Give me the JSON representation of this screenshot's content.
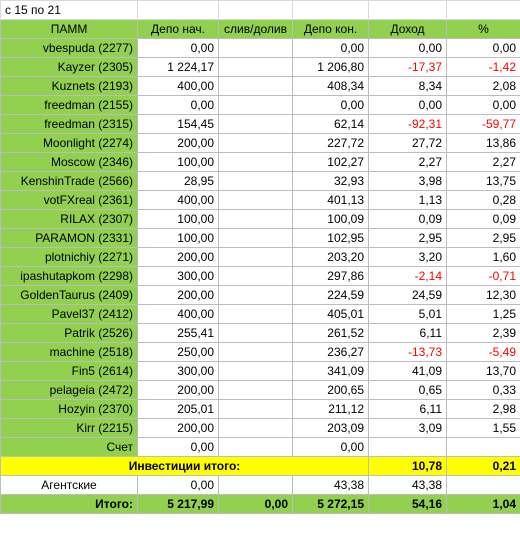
{
  "title": "с 15 по 21",
  "headers": [
    "ПАММ",
    "Депо нач.",
    "слив/долив",
    "Депо кон.",
    "Доход",
    "%"
  ],
  "rows": [
    {
      "name": "vbespuda (2277)",
      "start": "0,00",
      "flow": "",
      "end": "0,00",
      "income": "0,00",
      "pct": "0,00"
    },
    {
      "name": "Kayzer (2305)",
      "start": "1 224,17",
      "flow": "",
      "end": "1 206,80",
      "income": "-17,37",
      "pct": "-1,42"
    },
    {
      "name": "Kuznets (2193)",
      "start": "400,00",
      "flow": "",
      "end": "408,34",
      "income": "8,34",
      "pct": "2,08"
    },
    {
      "name": "freedman (2155)",
      "start": "0,00",
      "flow": "",
      "end": "0,00",
      "income": "0,00",
      "pct": "0,00"
    },
    {
      "name": "freedman (2315)",
      "start": "154,45",
      "flow": "",
      "end": "62,14",
      "income": "-92,31",
      "pct": "-59,77"
    },
    {
      "name": "Moonlight (2274)",
      "start": "200,00",
      "flow": "",
      "end": "227,72",
      "income": "27,72",
      "pct": "13,86"
    },
    {
      "name": "Moscow (2346)",
      "start": "100,00",
      "flow": "",
      "end": "102,27",
      "income": "2,27",
      "pct": "2,27"
    },
    {
      "name": "KenshinTrade (2566)",
      "start": "28,95",
      "flow": "",
      "end": "32,93",
      "income": "3,98",
      "pct": "13,75"
    },
    {
      "name": "votFXreal (2361)",
      "start": "400,00",
      "flow": "",
      "end": "401,13",
      "income": "1,13",
      "pct": "0,28"
    },
    {
      "name": "RILAX (2307)",
      "start": "100,00",
      "flow": "",
      "end": "100,09",
      "income": "0,09",
      "pct": "0,09"
    },
    {
      "name": "PARAMON (2331)",
      "start": "100,00",
      "flow": "",
      "end": "102,95",
      "income": "2,95",
      "pct": "2,95"
    },
    {
      "name": "plotnichiy (2271)",
      "start": "200,00",
      "flow": "",
      "end": "203,20",
      "income": "3,20",
      "pct": "1,60"
    },
    {
      "name": "ipashutapkom (2298)",
      "start": "300,00",
      "flow": "",
      "end": "297,86",
      "income": "-2,14",
      "pct": "-0,71"
    },
    {
      "name": "GoldenTaurus (2409)",
      "start": "200,00",
      "flow": "",
      "end": "224,59",
      "income": "24,59",
      "pct": "12,30"
    },
    {
      "name": "Pavel37 (2412)",
      "start": "400,00",
      "flow": "",
      "end": "405,01",
      "income": "5,01",
      "pct": "1,25"
    },
    {
      "name": "Patrik (2526)",
      "start": "255,41",
      "flow": "",
      "end": "261,52",
      "income": "6,11",
      "pct": "2,39"
    },
    {
      "name": "machine (2518)",
      "start": "250,00",
      "flow": "",
      "end": "236,27",
      "income": "-13,73",
      "pct": "-5,49"
    },
    {
      "name": "Fin5 (2614)",
      "start": "300,00",
      "flow": "",
      "end": "341,09",
      "income": "41,09",
      "pct": "13,70"
    },
    {
      "name": "pelageia (2472)",
      "start": "200,00",
      "flow": "",
      "end": "200,65",
      "income": "0,65",
      "pct": "0,33"
    },
    {
      "name": "Hozyin (2370)",
      "start": "205,01",
      "flow": "",
      "end": "211,12",
      "income": "6,11",
      "pct": "2,98"
    },
    {
      "name": "Kirr (2215)",
      "start": "200,00",
      "flow": "",
      "end": "203,09",
      "income": "3,09",
      "pct": "1,55"
    },
    {
      "name": "Счет",
      "start": "0,00",
      "flow": "",
      "end": "0,00",
      "income": "",
      "pct": ""
    }
  ],
  "investments": {
    "label": "Инвестиции итого:",
    "income": "10,78",
    "pct": "0,21"
  },
  "agent": {
    "label": "Агентские",
    "start": "0,00",
    "end": "43,38",
    "income": "43,38"
  },
  "total": {
    "label": "Итого:",
    "start": "5 217,99",
    "flow": "0,00",
    "end": "5 272,15",
    "income": "54,16",
    "pct": "1,04"
  },
  "colors": {
    "header_green": "#92d050",
    "invest_yellow": "#ffff00",
    "negative_red": "#ff0000"
  }
}
